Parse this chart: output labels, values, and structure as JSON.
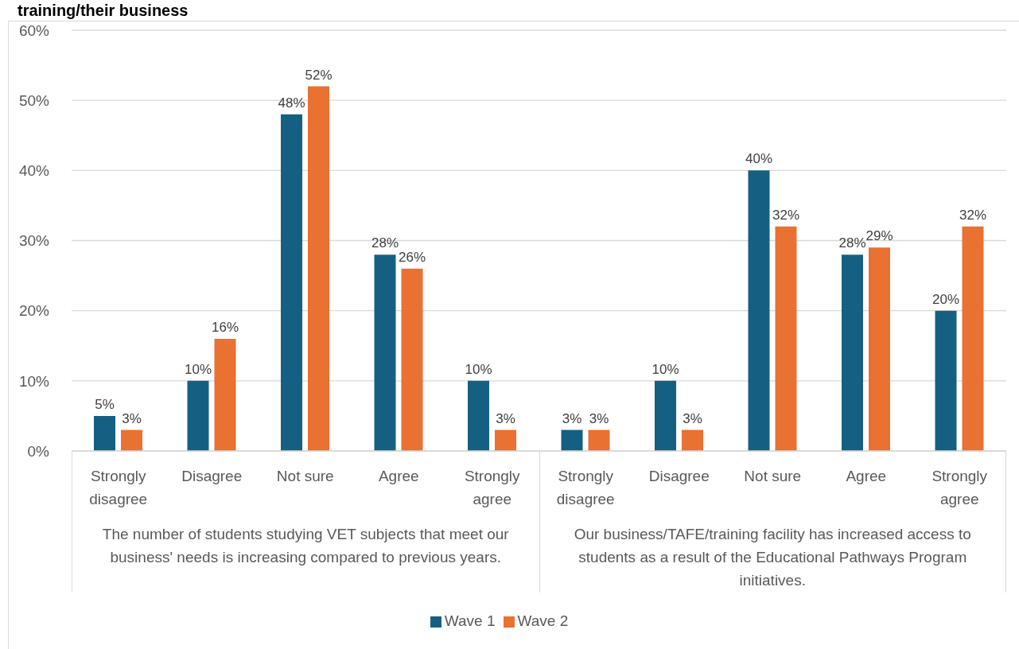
{
  "chart_data": {
    "type": "bar",
    "title": "training/their business",
    "categories": [
      "Strongly disagree",
      "Disagree",
      "Not sure",
      "Agree",
      "Strongly agree",
      "Strongly disagree",
      "Disagree",
      "Not sure",
      "Agree",
      "Strongly agree"
    ],
    "series": [
      {
        "name": "Wave 1",
        "color": "#156082",
        "values": [
          5,
          10,
          48,
          28,
          10,
          3,
          10,
          40,
          28,
          20
        ],
        "value_labels": [
          "5%",
          "10%",
          "48%",
          "28%",
          "10%",
          "3%",
          "10%",
          "40%",
          "28%",
          "20%"
        ]
      },
      {
        "name": "Wave 2",
        "color": "#e97132",
        "values": [
          3,
          16,
          52,
          26,
          3,
          3,
          3,
          32,
          29,
          32
        ],
        "value_labels": [
          "3%",
          "16%",
          "52%",
          "26%",
          "3%",
          "3%",
          "3%",
          "32%",
          "29%",
          "32%"
        ]
      }
    ],
    "ylim": [
      0,
      60
    ],
    "yticks": [
      {
        "value": 0,
        "label": "0%"
      },
      {
        "value": 10,
        "label": "10%"
      },
      {
        "value": 20,
        "label": "20%"
      },
      {
        "value": 30,
        "label": "30%"
      },
      {
        "value": 40,
        "label": "40%"
      },
      {
        "value": 50,
        "label": "50%"
      },
      {
        "value": 60,
        "label": "60%"
      }
    ],
    "grid": "y",
    "legend": "bottom",
    "annotations": [
      "The number of students studying VET subjects that meet our business' needs is increasing compared to previous years.",
      "Our business/TAFE/training facility has increased access to students as a result of the Educational Pathways Program initiatives."
    ]
  }
}
